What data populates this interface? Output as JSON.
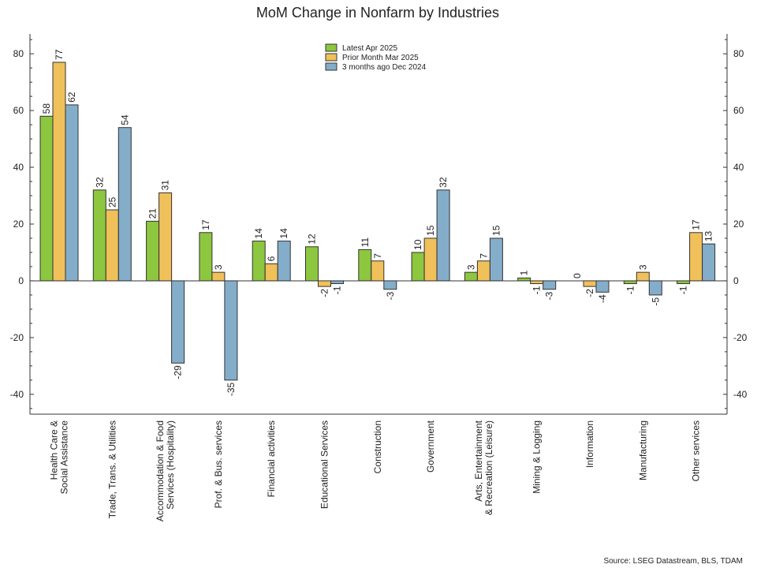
{
  "chart_data": {
    "type": "bar",
    "title": "MoM Change in Nonfarm by Industries",
    "source": "Source: LSEG Datastream, BLS, TDAM",
    "categories": [
      [
        "Health Care &",
        "Social Assistance"
      ],
      [
        "Trade, Trans. & Utilities"
      ],
      [
        "Accommodation & Food",
        "Services (Hospitality)"
      ],
      [
        "Prof. & Bus. services"
      ],
      [
        "Financial activities"
      ],
      [
        "Educational Services"
      ],
      [
        "Construction"
      ],
      [
        "Government"
      ],
      [
        "Arts, Entertainment",
        "& Recreation (Leisure)"
      ],
      [
        "Mining & Logging"
      ],
      [
        "Information"
      ],
      [
        "Manufacturing"
      ],
      [
        "Other services"
      ]
    ],
    "series": [
      {
        "name": "Latest Apr 2025",
        "color": "#8dc63f",
        "values": [
          58,
          32,
          21,
          17,
          14,
          12,
          11,
          10,
          3,
          1,
          0,
          -1,
          -1
        ],
        "labels": [
          "58",
          "32",
          "21",
          "17",
          "14",
          "12",
          "11",
          "10",
          "3",
          "1",
          "0",
          "-1",
          "-1"
        ]
      },
      {
        "name": "Prior Month Mar 2025",
        "color": "#f0c05a",
        "values": [
          77,
          25,
          31,
          3,
          6,
          -2,
          7,
          15,
          7,
          -1,
          -2,
          3,
          17
        ],
        "labels": [
          "77",
          "25",
          "31",
          "3",
          "6",
          "-2",
          "7",
          "15",
          "7",
          "-1",
          "-2",
          "3",
          "17"
        ]
      },
      {
        "name": "3 months ago  Dec 2024",
        "color": "#84adc9",
        "values": [
          62,
          54,
          -29,
          -35,
          14,
          -1,
          -3,
          32,
          15,
          -3,
          -4,
          -5,
          13
        ],
        "labels": [
          "62",
          "54",
          "-29",
          "-35",
          "14",
          "-1",
          "-3",
          "32",
          "15",
          "-3",
          "-4",
          "-5",
          "13"
        ]
      }
    ],
    "ylim": [
      -47,
      87
    ],
    "yticks": [
      -40,
      -20,
      0,
      20,
      40,
      60,
      80
    ],
    "ytick_labels": [
      "-40",
      "-20",
      "0",
      "20",
      "40",
      "60",
      "80"
    ],
    "axes": "left-and-right",
    "grid": false,
    "legend_position": "top-center"
  }
}
